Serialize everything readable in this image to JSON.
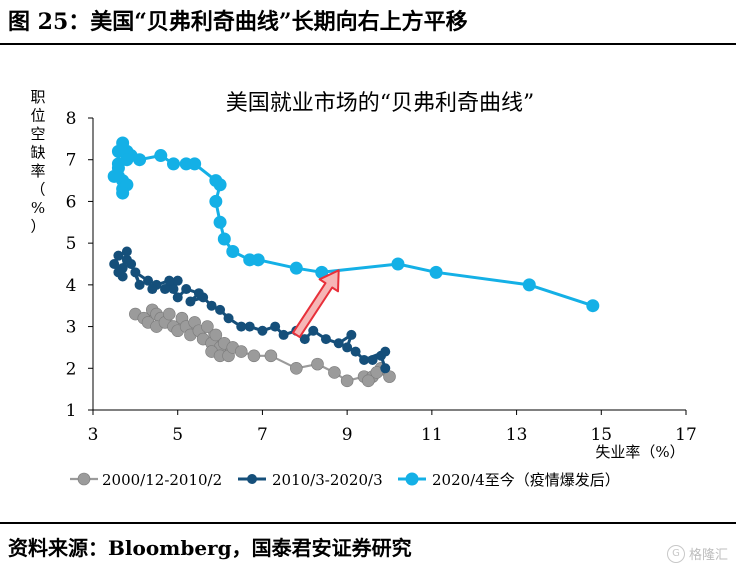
{
  "page": {
    "figure_title": "图 25：美国“贝弗利奇曲线”长期向右上方平移",
    "source": "资料来源：Bloomberg，国泰君安证券研究",
    "watermark": "格隆汇"
  },
  "chart_data": {
    "type": "scatter",
    "title": "美国就业市场的“贝弗利奇曲线”",
    "xlabel": "失业率（%）",
    "ylabel": [
      "职",
      "位",
      "空",
      "缺",
      "率",
      "（",
      "%",
      "）"
    ],
    "xlim": [
      3,
      17
    ],
    "ylim": [
      1,
      8
    ],
    "xticks": [
      3,
      5,
      7,
      9,
      11,
      13,
      15,
      17
    ],
    "yticks": [
      1,
      2,
      3,
      4,
      5,
      6,
      7,
      8
    ],
    "grid": false,
    "legend_position": "bottom",
    "series": [
      {
        "name": "2000/12-2010/2",
        "color": "#9b9b9b",
        "points": [
          [
            4.0,
            3.3
          ],
          [
            4.2,
            3.2
          ],
          [
            4.3,
            3.1
          ],
          [
            4.4,
            3.4
          ],
          [
            4.5,
            3.3
          ],
          [
            4.6,
            3.2
          ],
          [
            4.5,
            3.0
          ],
          [
            4.7,
            3.1
          ],
          [
            4.8,
            3.3
          ],
          [
            4.9,
            3.0
          ],
          [
            5.0,
            2.9
          ],
          [
            5.1,
            3.2
          ],
          [
            5.2,
            3.0
          ],
          [
            5.3,
            2.8
          ],
          [
            5.4,
            3.1
          ],
          [
            5.5,
            2.9
          ],
          [
            5.6,
            2.7
          ],
          [
            5.7,
            3.0
          ],
          [
            5.8,
            2.6
          ],
          [
            5.9,
            2.8
          ],
          [
            6.0,
            2.5
          ],
          [
            5.8,
            2.4
          ],
          [
            6.0,
            2.3
          ],
          [
            6.1,
            2.6
          ],
          [
            6.2,
            2.3
          ],
          [
            6.3,
            2.5
          ],
          [
            6.5,
            2.4
          ],
          [
            6.8,
            2.3
          ],
          [
            7.2,
            2.3
          ],
          [
            7.8,
            2.0
          ],
          [
            8.3,
            2.1
          ],
          [
            8.7,
            1.9
          ],
          [
            9.0,
            1.7
          ],
          [
            9.4,
            1.8
          ],
          [
            9.6,
            1.8
          ],
          [
            9.8,
            2.0
          ],
          [
            10.0,
            1.8
          ],
          [
            9.7,
            1.9
          ],
          [
            9.5,
            1.7
          ]
        ]
      },
      {
        "name": "2010/3-2020/3",
        "color": "#154f7a",
        "points": [
          [
            9.9,
            2.0
          ],
          [
            9.8,
            2.3
          ],
          [
            9.6,
            2.2
          ],
          [
            9.9,
            2.4
          ],
          [
            9.4,
            2.2
          ],
          [
            9.2,
            2.4
          ],
          [
            9.0,
            2.5
          ],
          [
            9.1,
            2.8
          ],
          [
            8.8,
            2.6
          ],
          [
            8.5,
            2.7
          ],
          [
            8.2,
            2.9
          ],
          [
            8.0,
            2.7
          ],
          [
            7.8,
            2.9
          ],
          [
            7.5,
            2.8
          ],
          [
            7.3,
            3.0
          ],
          [
            7.0,
            2.9
          ],
          [
            6.7,
            3.0
          ],
          [
            6.5,
            3.0
          ],
          [
            6.2,
            3.2
          ],
          [
            6.0,
            3.4
          ],
          [
            5.8,
            3.5
          ],
          [
            5.6,
            3.7
          ],
          [
            5.3,
            3.6
          ],
          [
            5.5,
            3.8
          ],
          [
            5.2,
            3.9
          ],
          [
            5.0,
            3.7
          ],
          [
            4.9,
            3.9
          ],
          [
            5.0,
            4.1
          ],
          [
            4.7,
            3.9
          ],
          [
            4.8,
            4.1
          ],
          [
            4.5,
            4.0
          ],
          [
            4.4,
            3.9
          ],
          [
            4.3,
            4.1
          ],
          [
            4.0,
            4.3
          ],
          [
            4.1,
            4.0
          ],
          [
            3.9,
            4.5
          ],
          [
            3.8,
            4.6
          ],
          [
            3.7,
            4.4
          ],
          [
            3.8,
            4.8
          ],
          [
            3.6,
            4.7
          ],
          [
            3.5,
            4.5
          ],
          [
            3.7,
            4.2
          ],
          [
            3.6,
            4.3
          ]
        ]
      },
      {
        "name": "2020/4至今（疫情爆发后）",
        "color": "#14b0e6",
        "points": [
          [
            14.8,
            3.5
          ],
          [
            13.3,
            4.0
          ],
          [
            11.1,
            4.3
          ],
          [
            10.2,
            4.5
          ],
          [
            8.4,
            4.3
          ],
          [
            7.8,
            4.4
          ],
          [
            6.9,
            4.6
          ],
          [
            6.7,
            4.6
          ],
          [
            6.3,
            4.8
          ],
          [
            6.1,
            5.1
          ],
          [
            6.0,
            5.5
          ],
          [
            5.9,
            6.0
          ],
          [
            6.0,
            6.4
          ],
          [
            5.9,
            6.5
          ],
          [
            5.4,
            6.9
          ],
          [
            5.2,
            6.9
          ],
          [
            4.9,
            6.9
          ],
          [
            4.6,
            7.1
          ],
          [
            4.1,
            7.0
          ],
          [
            3.9,
            7.1
          ],
          [
            3.8,
            7.2
          ],
          [
            3.7,
            7.4
          ],
          [
            3.6,
            7.2
          ],
          [
            3.8,
            7.0
          ],
          [
            3.6,
            6.9
          ],
          [
            3.6,
            6.6
          ],
          [
            3.7,
            6.5
          ],
          [
            3.5,
            6.6
          ],
          [
            3.6,
            6.8
          ],
          [
            3.7,
            6.3
          ],
          [
            3.8,
            6.4
          ],
          [
            3.7,
            6.2
          ]
        ]
      }
    ],
    "annotations": [
      {
        "type": "arrow",
        "direction": "up-right",
        "color": "#e8303a"
      }
    ]
  }
}
